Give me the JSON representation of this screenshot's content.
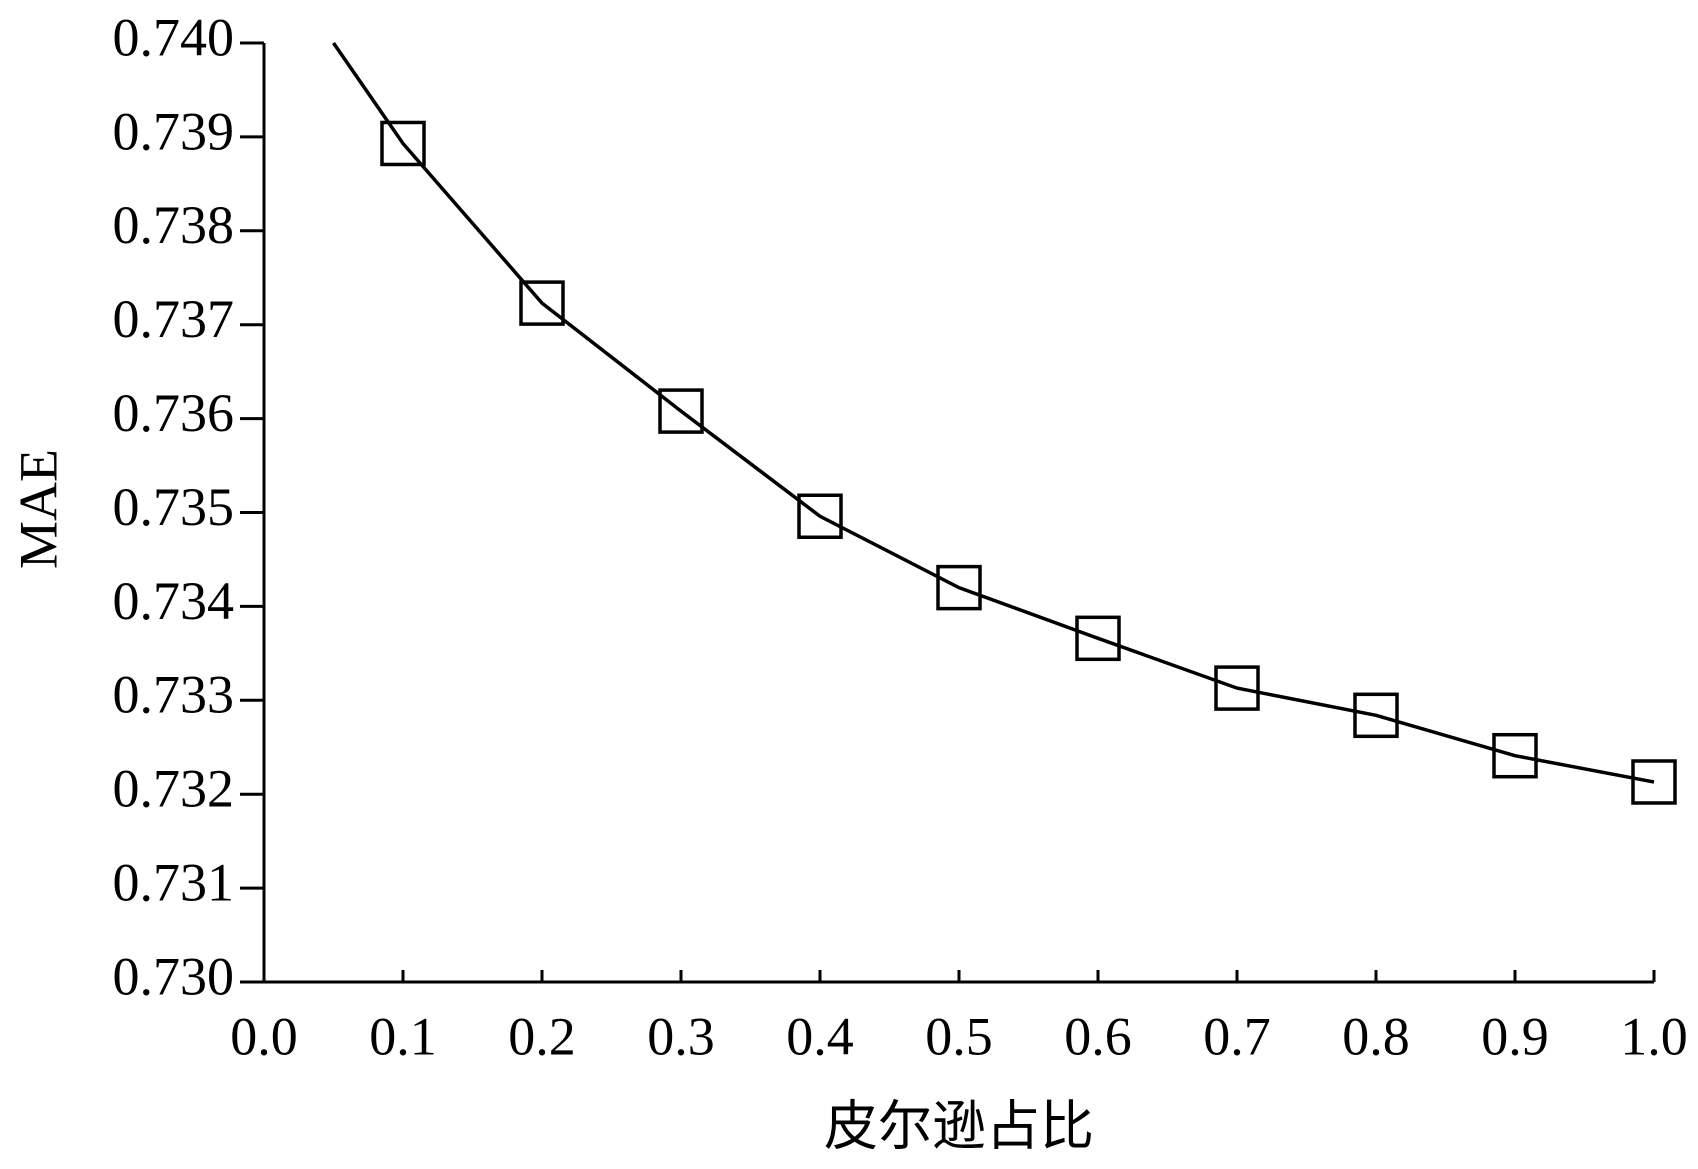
{
  "chart_data": {
    "type": "line",
    "x_label": "皮尔逊占比",
    "y_label": "MAE",
    "xlim": [
      0,
      1
    ],
    "xticks": [
      {
        "value": 0,
        "label": "0.0"
      },
      0.1,
      0.2,
      0.3,
      0.4,
      0.5,
      0.6,
      0.7,
      0.8,
      0.9,
      {
        "value": 1,
        "label": "1.0"
      }
    ],
    "ylim": [
      0.73,
      0.74
    ],
    "yticks": [
      {
        "value": 0.73,
        "label": "0.730"
      },
      0.731,
      0.732,
      0.733,
      0.734,
      0.735,
      0.736,
      0.737,
      0.738,
      0.739,
      {
        "value": 0.74,
        "label": "0.740"
      }
    ],
    "grid": false,
    "series": [
      {
        "color": "#000000",
        "marker": "none",
        "x": [
          0.05,
          0.1,
          0.2,
          0.3,
          0.4,
          0.5,
          0.6,
          0.7,
          0.8,
          0.9,
          1.0
        ],
        "values": [
          0.74,
          0.73893,
          0.73723,
          0.73608,
          0.73496,
          0.7342,
          0.73366,
          0.73313,
          0.73284,
          0.73241,
          0.73213
        ]
      },
      {
        "color": "#000000",
        "marker": "square",
        "line": false,
        "x": [
          0.1,
          0.2,
          0.3,
          0.4,
          0.5,
          0.6,
          0.7,
          0.8,
          0.9,
          1.0
        ],
        "values": [
          0.73893,
          0.73723,
          0.73608,
          0.73496,
          0.7342,
          0.73366,
          0.73313,
          0.73284,
          0.73241,
          0.73213
        ]
      }
    ]
  }
}
